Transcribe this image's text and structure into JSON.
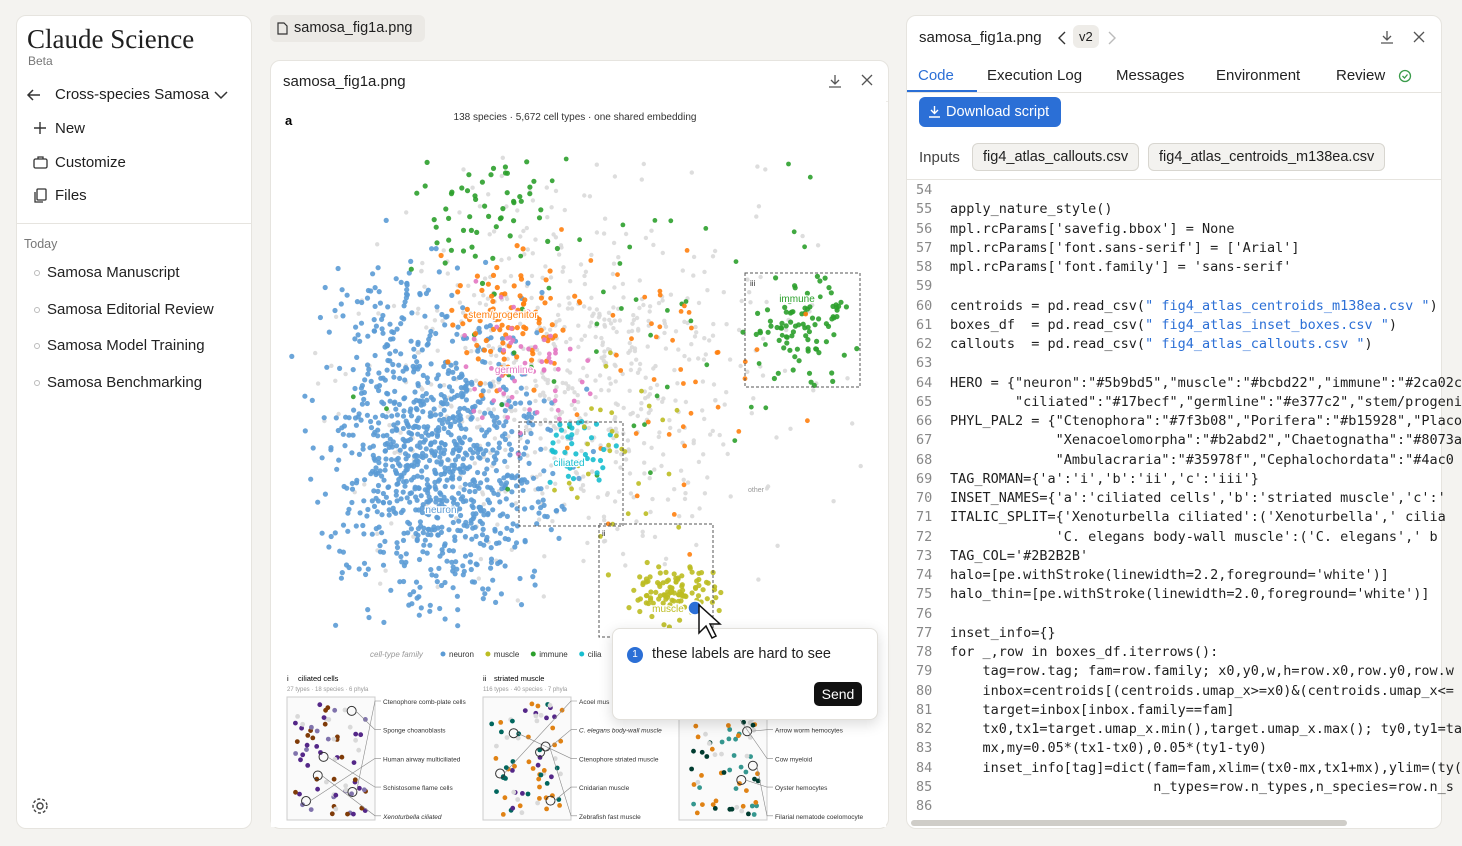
{
  "sidebar": {
    "brand": "Claude Science",
    "badge": "Beta",
    "project": "Cross-species Samosa",
    "nav": [
      "New",
      "Customize",
      "Files"
    ],
    "section": "Today",
    "history": [
      "Samosa Manuscript",
      "Samosa Editorial Review",
      "Samosa Model Training",
      "Samosa Benchmarking"
    ]
  },
  "viewer": {
    "tab": "samosa_fig1a.png",
    "title": "samosa_fig1a.png",
    "figure": {
      "panel_letter": "a",
      "subtitle": "138 species · 5,672 cell types · one shared embedding",
      "cluster_labels": [
        "stem/progenitor",
        "germline",
        "ciliated",
        "neuron",
        "immune",
        "muscle",
        "other"
      ],
      "box_tags": [
        "i",
        "ii",
        "iii"
      ],
      "legend_title": "cell-type family",
      "legend": [
        {
          "name": "neuron",
          "color": "#5b9bd5"
        },
        {
          "name": "muscle",
          "color": "#bcbd22"
        },
        {
          "name": "immune",
          "color": "#2ca02c"
        },
        {
          "name": "cilia",
          "color": "#17becf"
        }
      ],
      "insets": [
        {
          "tag": "i",
          "title": "ciliated cells",
          "subtitle": "27 types · 18 species · 6 phyla",
          "labels": [
            "Ctenophore comb-plate cells",
            "Sponge choanoblasts",
            "Human airway multiciliated",
            "Schistosome flame cells",
            "Xenoturbella ciliated"
          ]
        },
        {
          "tag": "ii",
          "title": "striated muscle",
          "subtitle": "116 types · 40 species · 7 phyla",
          "labels": [
            "Acoel mus",
            "C. elegans body-wall muscle",
            "Ctenophore striated muscle",
            "Cnidarian muscle",
            "Zebrafish fast muscle"
          ]
        },
        {
          "labels": [
            "Arrow worm hemocytes",
            "Cow myeloid",
            "Oyster hemocytes",
            "Filarial nematode coelomocyte"
          ]
        }
      ]
    },
    "comment": {
      "badge": "1",
      "text": "these labels are hard to see",
      "button": "Send"
    }
  },
  "code_panel": {
    "file": "samosa_fig1a.png",
    "version": "v2",
    "tabs": [
      "Code",
      "Execution Log",
      "Messages",
      "Environment",
      "Review"
    ],
    "download": "Download script",
    "inputs_label": "Inputs",
    "inputs": [
      "fig4_atlas_callouts.csv",
      "fig4_atlas_centroids_m138ea.csv"
    ],
    "line_numbers": [
      54,
      55,
      56,
      57,
      58,
      59,
      60,
      61,
      62,
      63,
      64,
      65,
      66,
      67,
      68,
      69,
      70,
      71,
      72,
      73,
      74,
      75,
      76,
      77,
      78,
      79,
      80,
      81,
      82,
      83,
      84,
      85,
      86
    ],
    "lines": [
      null,
      "apply_nature_style()",
      "mpl.rcParams['savefig.bbox'] = None",
      "mpl.rcParams['font.sans-serif'] = ['Arial']",
      "mpl.rcParams['font.family'] = 'sans-serif'",
      null,
      "centroids = pd.read_csv(\" fig4_atlas_centroids_m138ea.csv \")",
      "boxes_df  = pd.read_csv(\" fig4_atlas_inset_boxes.csv \")",
      "callouts  = pd.read_csv(\" fig4_atlas_callouts.csv \")",
      null,
      "HERO = {\"neuron\":\"#5b9bd5\",\"muscle\":\"#bcbd22\",\"immune\":\"#2ca02c",
      "        \"ciliated\":\"#17becf\",\"germline\":\"#e377c2\",\"stem/progeni",
      "PHYL_PAL2 = {\"Ctenophora\":\"#7f3b08\",\"Porifera\":\"#b15928\",\"Placo",
      "             \"Xenacoelomorpha\":\"#b2abd2\",\"Chaetognatha\":\"#8073a",
      "             \"Ambulacraria\":\"#35978f\",\"Cephalochordata\":\"#4ac0",
      "TAG_ROMAN={'a':'i','b':'ii','c':'iii'}",
      "INSET_NAMES={'a':'ciliated cells','b':'striated muscle','c':'",
      "ITALIC_SPLIT={'Xenoturbella ciliated':('Xenoturbella',' cilia",
      "             'C. elegans body-wall muscle':('C. elegans',' b",
      "TAG_COL='#2B2B2B'",
      "halo=[pe.withStroke(linewidth=2.2,foreground='white')]",
      "halo_thin=[pe.withStroke(linewidth=2.0,foreground='white')]",
      null,
      "inset_info={}",
      "for _,row in boxes_df.iterrows():",
      "    tag=row.tag; fam=row.family; x0,y0,w,h=row.x0,row.y0,row.w",
      "    inbox=centroids[(centroids.umap_x>=x0)&(centroids.umap_x<=",
      "    target=inbox[inbox.family==fam]",
      "    tx0,tx1=target.umap_x.min(),target.umap_x.max(); ty0,ty1=ta",
      "    mx,my=0.05*(tx1-tx0),0.05*(ty1-ty0)",
      "    inset_info[tag]=dict(fam=fam,xlim=(tx0-mx,tx1+mx),ylim=(ty(",
      "                         n_types=row.n_types,n_species=row.n_s",
      null
    ]
  }
}
